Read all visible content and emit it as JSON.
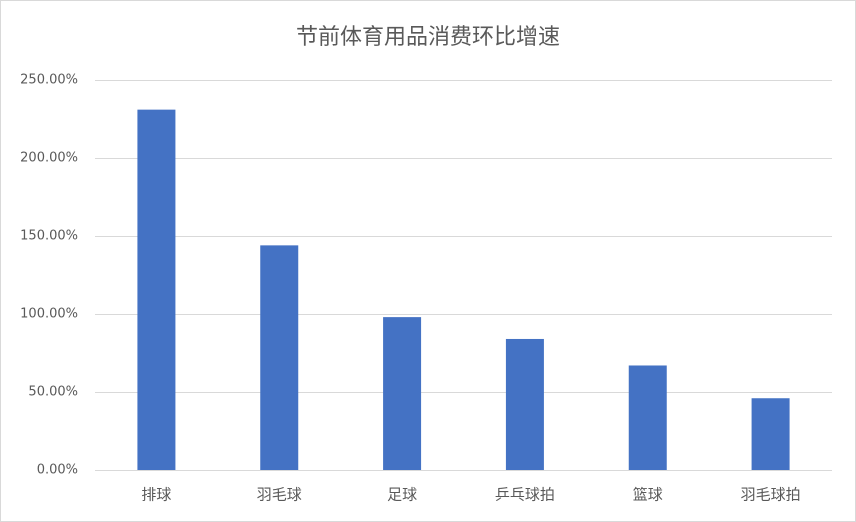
{
  "chart_data": {
    "type": "bar",
    "title": "节前体育用品消费环比增速",
    "categories": [
      "排球",
      "羽毛球",
      "足球",
      "乒乓球拍",
      "篮球",
      "羽毛球拍"
    ],
    "values": [
      231,
      144,
      98,
      84,
      67,
      46
    ],
    "color": "#4472c4",
    "ylim": [
      0,
      250
    ],
    "yticks": [
      {
        "value": 0,
        "label": "0.00%"
      },
      {
        "value": 50,
        "label": "50.00%"
      },
      {
        "value": 100,
        "label": "100.00%"
      },
      {
        "value": 150,
        "label": "150.00%"
      },
      {
        "value": 200,
        "label": "200.00%"
      },
      {
        "value": 250,
        "label": "250.00%"
      }
    ],
    "grid": true
  }
}
